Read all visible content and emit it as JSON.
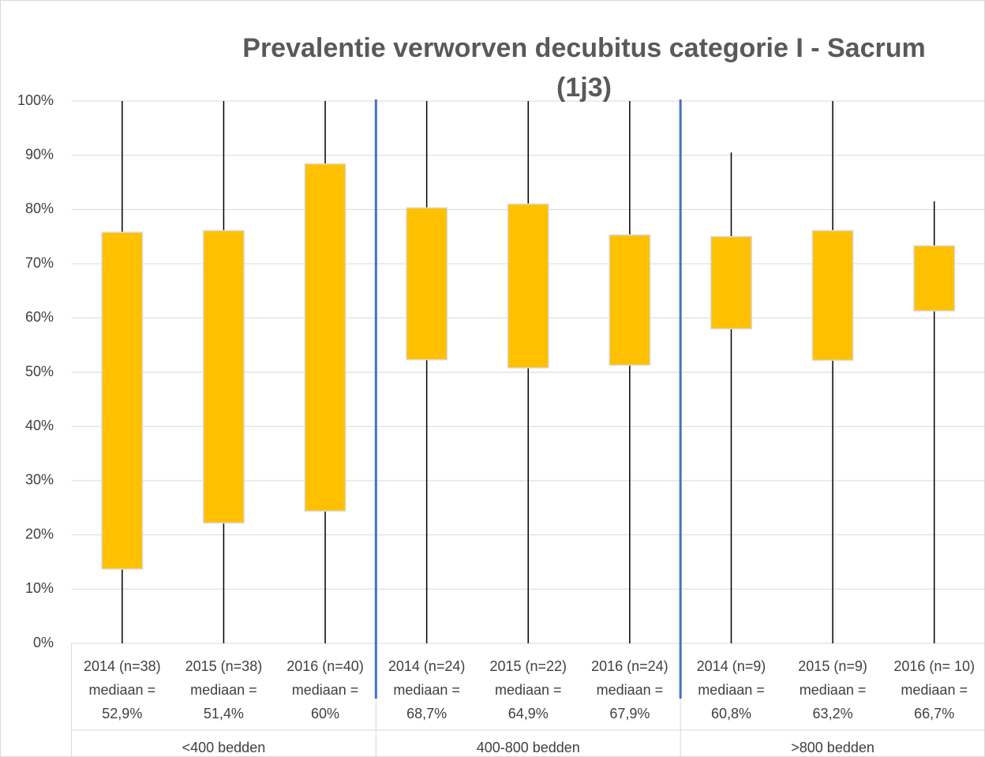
{
  "chart_data": {
    "type": "box",
    "title": "Prevalentie verworven decubitus categorie I - Sacrum (1j3)",
    "groups": [
      {
        "name": "<400 bedden",
        "categories": [
          "2014 (n=38)",
          "2015 (n=38)",
          "2016 (n=40)"
        ]
      },
      {
        "name": "400-800 bedden",
        "categories": [
          "2014 (n=24)",
          "2015 (n=22)",
          "2016 (n=24)"
        ]
      },
      {
        "name": ">800 bedden",
        "categories": [
          "2014 (n=9)",
          "2015 (n=9)",
          "2016 (n= 10)"
        ]
      }
    ],
    "median_prefix": "mediaan =",
    "medians": [
      52.9,
      51.4,
      60,
      68.7,
      64.9,
      67.9,
      60.8,
      63.2,
      66.7
    ],
    "median_labels": [
      "52,9%",
      "51,4%",
      "60%",
      "68,7%",
      "64,9%",
      "67,9%",
      "60,8%",
      "63,2%",
      "66,7%"
    ],
    "low": [
      0,
      0,
      0,
      0,
      0,
      0,
      0,
      0,
      0
    ],
    "q1": [
      13.7,
      22.2,
      24.4,
      52.3,
      50.8,
      51.3,
      58.0,
      52.2,
      61.3
    ],
    "q3": [
      75.8,
      76.1,
      88.4,
      80.3,
      81.0,
      75.3,
      75.0,
      76.1,
      73.3
    ],
    "high": [
      100,
      100,
      100,
      100,
      100,
      100,
      90.5,
      100,
      81.5
    ],
    "box_color": "#ffc000",
    "whisker_color": "#000000",
    "separator_color": "#4472c4",
    "ylim": [
      0,
      100
    ],
    "yticks": [
      {
        "value": 0,
        "label": "0%"
      },
      {
        "value": 10,
        "label": "10%"
      },
      {
        "value": 20,
        "label": "20%"
      },
      {
        "value": 30,
        "label": "30%"
      },
      {
        "value": 40,
        "label": "40%"
      },
      {
        "value": 50,
        "label": "50%"
      },
      {
        "value": 60,
        "label": "60%"
      },
      {
        "value": 70,
        "label": "70%"
      },
      {
        "value": 80,
        "label": "80%"
      },
      {
        "value": 90,
        "label": "90%"
      },
      {
        "value": 100,
        "label": "100%"
      }
    ],
    "grid": true
  }
}
